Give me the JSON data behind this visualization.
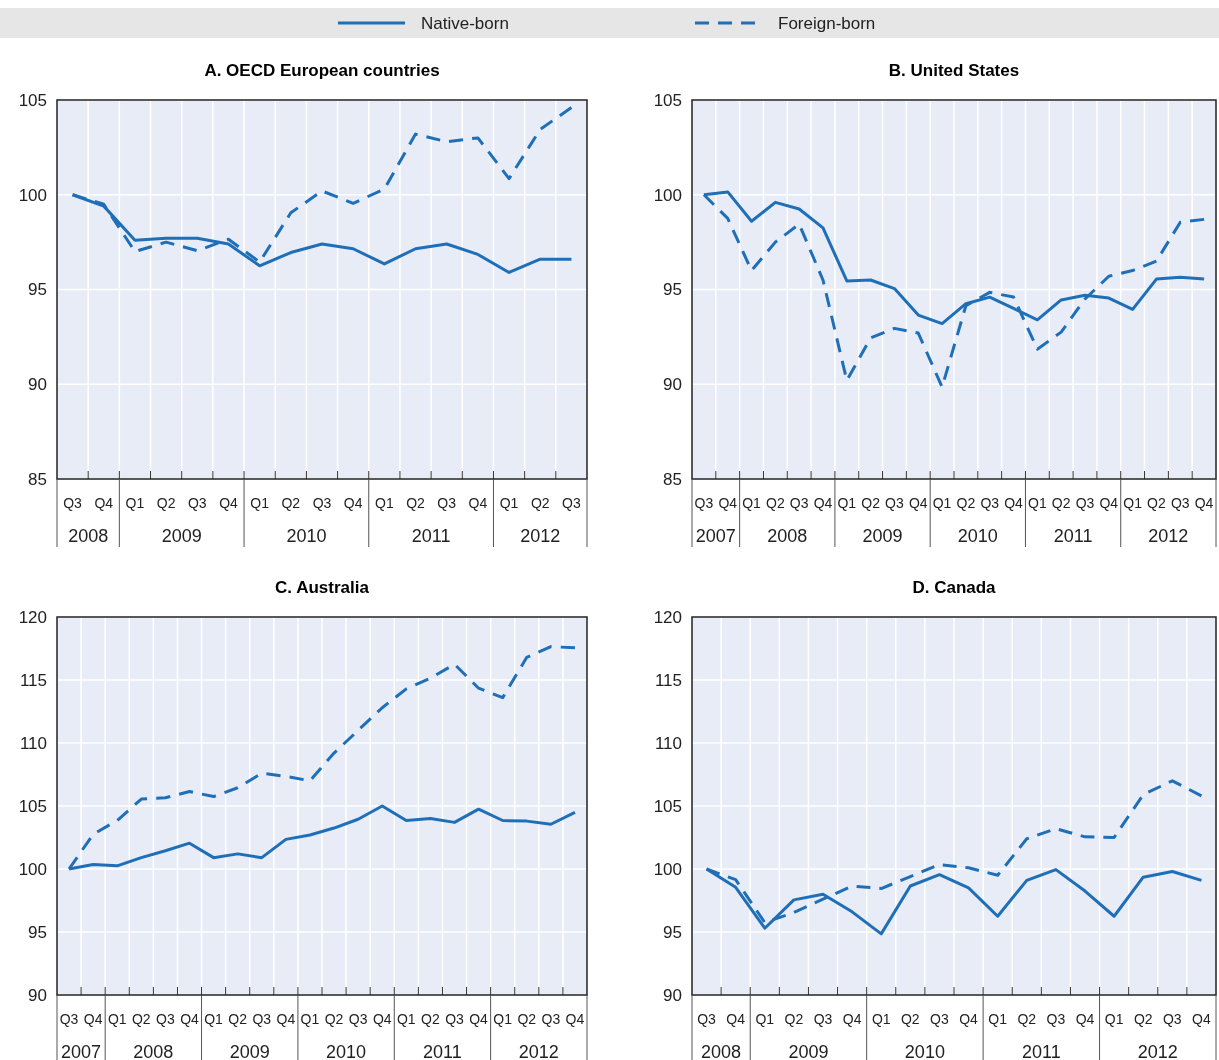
{
  "chart_data": [
    {
      "type": "line",
      "title": "A. OECD European countries",
      "legend": "top",
      "grid": true,
      "ylim": [
        85,
        105
      ],
      "yticks": [
        85,
        90,
        95,
        100,
        105
      ],
      "categories": [
        "Q3",
        "Q4",
        "Q1",
        "Q2",
        "Q3",
        "Q4",
        "Q1",
        "Q2",
        "Q3",
        "Q4",
        "Q1",
        "Q2",
        "Q3",
        "Q4",
        "Q1",
        "Q2",
        "Q3"
      ],
      "annotations": [
        "2008",
        "2009",
        "2010",
        "2011",
        "2012"
      ],
      "series": [
        {
          "name": "Native-born",
          "color": "#1f6fb8",
          "line_style": "solid",
          "values": [
            100,
            99.4,
            97.6,
            97.7,
            97.7,
            97.4,
            96.25,
            96.95,
            97.4,
            97.15,
            96.35,
            97.15,
            97.4,
            96.85,
            95.9,
            96.6,
            96.6
          ]
        },
        {
          "name": "Foreign-born",
          "color": "#1f6fb8",
          "line_style": "dashed",
          "values": [
            100,
            99.5,
            97.0,
            97.5,
            97.05,
            97.65,
            96.45,
            99.05,
            100.2,
            99.55,
            100.3,
            103.2,
            102.8,
            103.0,
            100.85,
            103.45,
            104.6
          ]
        }
      ]
    },
    {
      "type": "line",
      "title": "B. United States",
      "grid": true,
      "ylim": [
        85,
        105
      ],
      "yticks": [
        85,
        90,
        95,
        100,
        105
      ],
      "categories": [
        "Q3",
        "Q4",
        "Q1",
        "Q2",
        "Q3",
        "Q4",
        "Q1",
        "Q2",
        "Q3",
        "Q4",
        "Q1",
        "Q2",
        "Q3",
        "Q4",
        "Q1",
        "Q2",
        "Q3",
        "Q4",
        "Q1",
        "Q2",
        "Q3",
        "Q4"
      ],
      "annotations": [
        "2007",
        "2008",
        "2009",
        "2010",
        "2011",
        "2012"
      ],
      "series": [
        {
          "color": "#1f6fb8",
          "line_style": "solid",
          "values": [
            100,
            100.15,
            98.6,
            99.6,
            99.25,
            98.25,
            95.45,
            95.5,
            95.05,
            93.65,
            93.2,
            94.25,
            94.6,
            94.0,
            93.4,
            94.45,
            94.7,
            94.55,
            93.95,
            95.55,
            95.65,
            95.55
          ]
        },
        {
          "color": "#1f6fb8",
          "line_style": "dashed",
          "values": [
            100,
            98.75,
            96.0,
            97.5,
            98.45,
            95.5,
            90.2,
            92.45,
            92.95,
            92.7,
            89.85,
            94.15,
            94.85,
            94.6,
            91.85,
            92.75,
            94.5,
            95.7,
            96.0,
            96.5,
            98.55,
            98.7
          ]
        }
      ]
    },
    {
      "type": "line",
      "title": "C. Australia",
      "grid": true,
      "ylim": [
        90,
        120
      ],
      "yticks": [
        90,
        95,
        100,
        105,
        110,
        115,
        120
      ],
      "categories": [
        "Q3",
        "Q4",
        "Q1",
        "Q2",
        "Q3",
        "Q4",
        "Q1",
        "Q2",
        "Q3",
        "Q4",
        "Q1",
        "Q2",
        "Q3",
        "Q4",
        "Q1",
        "Q2",
        "Q3",
        "Q4",
        "Q1",
        "Q2",
        "Q3",
        "Q4"
      ],
      "annotations": [
        "2007",
        "2008",
        "2009",
        "2010",
        "2011",
        "2012"
      ],
      "series": [
        {
          "color": "#1f6fb8",
          "line_style": "solid",
          "values": [
            100,
            100.35,
            100.25,
            100.9,
            101.45,
            102.05,
            100.9,
            101.2,
            100.9,
            102.35,
            102.7,
            103.25,
            103.95,
            105.0,
            103.85,
            104.0,
            103.7,
            104.75,
            103.85,
            103.8,
            103.55,
            104.5
          ]
        },
        {
          "color": "#1f6fb8",
          "line_style": "dashed",
          "values": [
            100,
            102.75,
            103.85,
            105.55,
            105.65,
            106.15,
            105.75,
            106.45,
            107.6,
            107.35,
            107.0,
            109.2,
            111.0,
            112.8,
            114.3,
            115.15,
            116.25,
            114.35,
            113.6,
            116.8,
            117.65,
            117.55
          ]
        }
      ]
    },
    {
      "type": "line",
      "title": "D. Canada",
      "grid": true,
      "ylim": [
        90,
        120
      ],
      "yticks": [
        90,
        95,
        100,
        105,
        110,
        115,
        120
      ],
      "categories": [
        "Q3",
        "Q4",
        "Q1",
        "Q2",
        "Q3",
        "Q4",
        "Q1",
        "Q2",
        "Q3",
        "Q4",
        "Q1",
        "Q2",
        "Q3",
        "Q4",
        "Q1",
        "Q2",
        "Q3",
        "Q4"
      ],
      "annotations": [
        "2008",
        "2009",
        "2010",
        "2011",
        "2012"
      ],
      "series": [
        {
          "color": "#1f6fb8",
          "line_style": "solid",
          "values": [
            100,
            98.55,
            95.3,
            97.55,
            98.0,
            96.6,
            94.85,
            98.65,
            99.55,
            98.5,
            96.25,
            99.1,
            99.95,
            98.25,
            96.25,
            99.35,
            99.8,
            99.1
          ]
        },
        {
          "color": "#1f6fb8",
          "line_style": "dashed",
          "values": [
            100,
            99.15,
            95.75,
            96.55,
            97.6,
            98.65,
            98.45,
            99.4,
            100.35,
            100.1,
            99.5,
            102.4,
            103.2,
            102.55,
            102.5,
            105.9,
            107.0,
            105.8
          ]
        }
      ]
    }
  ]
}
